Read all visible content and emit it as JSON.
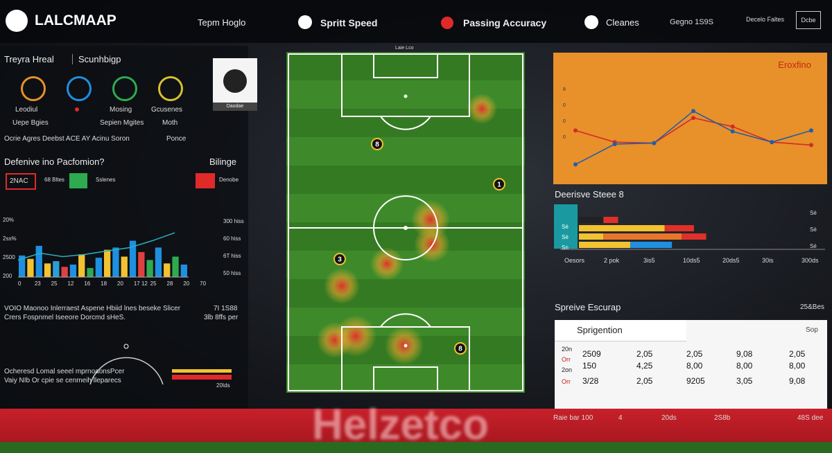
{
  "header": {
    "logo": "LALCMAAP",
    "nav": [
      "Tepm Hoglo",
      "Spritt Speed",
      "Passing Accuracy",
      "Cleanes"
    ],
    "info": "Gegno 1S9S",
    "link": "Decelo Faltes",
    "button": "Dcbe"
  },
  "left": {
    "title": "Treyra Hreal",
    "subtitle": "Scunhbigp",
    "card": "Daodae",
    "icon_labels": [
      "Leodiul",
      "Mosing",
      "Gcusenes"
    ],
    "row2": [
      "Uepe Bgies",
      "Sepien Mgites",
      "Moth"
    ],
    "row3": "Ocrie Agres  Deebst ACE AY  Acinu Soron",
    "row3_right": "Ponce",
    "section": "Defenive ino Pacfomion?",
    "section_right": "Bilinge",
    "legend": [
      "2NAC",
      "68 Bltes",
      "Sslenes",
      "Denobe"
    ],
    "bar_chart": {
      "ylim": [
        0,
        100
      ],
      "left_ticks": [
        "20%",
        "2ss%",
        "2500",
        "200"
      ],
      "right_ticks": [
        "300 hiss",
        "60 hiss",
        "6T hiss",
        "50 hiss"
      ],
      "x_labels": [
        "0",
        "23",
        "25",
        "12",
        "16",
        "18",
        "20",
        "17 12",
        "25",
        "28",
        "20",
        "70"
      ],
      "values": [
        38,
        32,
        55,
        24,
        28,
        18,
        22,
        40,
        16,
        34,
        48,
        52,
        36,
        64,
        44,
        30,
        52,
        24,
        36,
        22
      ],
      "colors": [
        "#1f8fe0",
        "#f2c230",
        "#1f8fe0",
        "#f2c230",
        "#2a9fd6",
        "#e04040",
        "#1f8fe0",
        "#f2c230",
        "#2eaa50",
        "#1f8fe0",
        "#f2c230",
        "#1f8fe0",
        "#f2c230",
        "#1f8fe0",
        "#e04040",
        "#2eaa50",
        "#1f8fe0",
        "#f2c230",
        "#2eaa50",
        "#1f8fe0"
      ],
      "trend": [
        30,
        42,
        36,
        40,
        46,
        52,
        64,
        78
      ]
    },
    "note": "VOIO Maonoo Inlerraest Aspene Hbiid lnes beseke Slicer",
    "note2": "Crers Fospnmel Iseeore Dorcmd sHeS.",
    "note_right": "7I 1S88",
    "note_right2": "3lb 8ffs per",
    "bottom": "Ocheresd Lomal seeel mprnoaonsPcer",
    "bottom2": "Vaiy NIb Or cpie se cenmeih lleparecs",
    "bottom_right": "20Ids"
  },
  "pitch": {
    "top_label": "Laie Lco",
    "markers": [
      "8",
      "1",
      "3",
      "8"
    ]
  },
  "right": {
    "chart_title": "Eroxfino",
    "axis_labels": [
      "8",
      "0",
      "0",
      "0"
    ],
    "line_chart": {
      "ylim": [
        0,
        100
      ],
      "series": [
        {
          "color": "#d22a2a",
          "values": [
            44,
            32,
            31,
            57,
            48,
            32,
            29
          ]
        },
        {
          "color": "#1f5fa8",
          "values": [
            9,
            30,
            31,
            64,
            43,
            32,
            44
          ]
        }
      ]
    },
    "bars_title": "Deerisve Steee 8",
    "bar_tags": [
      "Sé",
      "Sé",
      "Sn"
    ],
    "bars_right": [
      "Sé",
      "Sé",
      "Sé"
    ],
    "hbars": {
      "xlim": [
        0,
        100
      ],
      "rows": [
        {
          "values": [
            10,
            6
          ],
          "colors": [
            "#222",
            "#e0302a"
          ]
        },
        {
          "values": [
            35,
            12
          ],
          "colors": [
            "#f2c230",
            "#e0302a"
          ]
        },
        {
          "values": [
            10,
            32,
            10
          ],
          "colors": [
            "#f2c230",
            "#e8762a",
            "#e0302a"
          ]
        },
        {
          "values": [
            21,
            17
          ],
          "colors": [
            "#f2c230",
            "#1f8fe0"
          ]
        }
      ]
    },
    "hbars_x": [
      "Oesors",
      "2 pok",
      "3is5",
      "10ds5",
      "20ds5",
      "30is",
      "300ds"
    ],
    "table_section": "Spreive Escurap",
    "table_section_right": "25&Bes",
    "table_title": "Sprigention",
    "table_right": "Sop",
    "side": [
      "20n",
      "Orr",
      "2on",
      "Orr"
    ],
    "rows": [
      [
        "2509",
        "2,05",
        "2,05",
        "9,08",
        "2,05"
      ],
      [
        "150",
        "4,25",
        "8,00",
        "8,00",
        "8,00"
      ],
      [
        "3/28",
        "2,05",
        "9205",
        "3,05",
        "9,08"
      ]
    ]
  },
  "footer": {
    "banner": "Helzetco",
    "items": [
      "Raie bar 100",
      "4",
      "20ds",
      "2S8b",
      "48S dee"
    ]
  }
}
